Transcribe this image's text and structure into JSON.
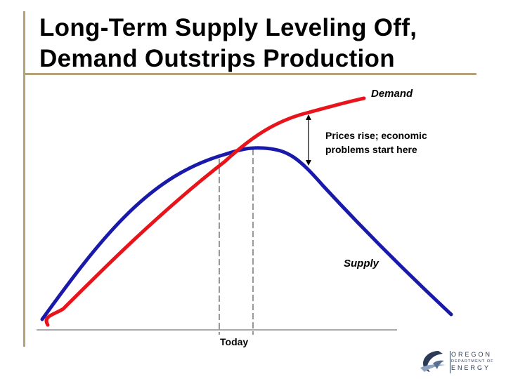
{
  "slide": {
    "title_line1": "Long-Term Supply Leveling Off,",
    "title_line2": "Demand Outstrips Production"
  },
  "diagram": {
    "demand_label": "Demand",
    "supply_label": "Supply",
    "annotation_line1": "Prices rise; economic",
    "annotation_line2": "problems start here",
    "today_label": "Today",
    "colors": {
      "demand": "#e8141c",
      "supply": "#1a1aaa",
      "accent_bar": "#b5a27a"
    }
  },
  "logo": {
    "line1": "OREGON",
    "line2": "DEPARTMENT OF",
    "line3": "ENERGY"
  }
}
